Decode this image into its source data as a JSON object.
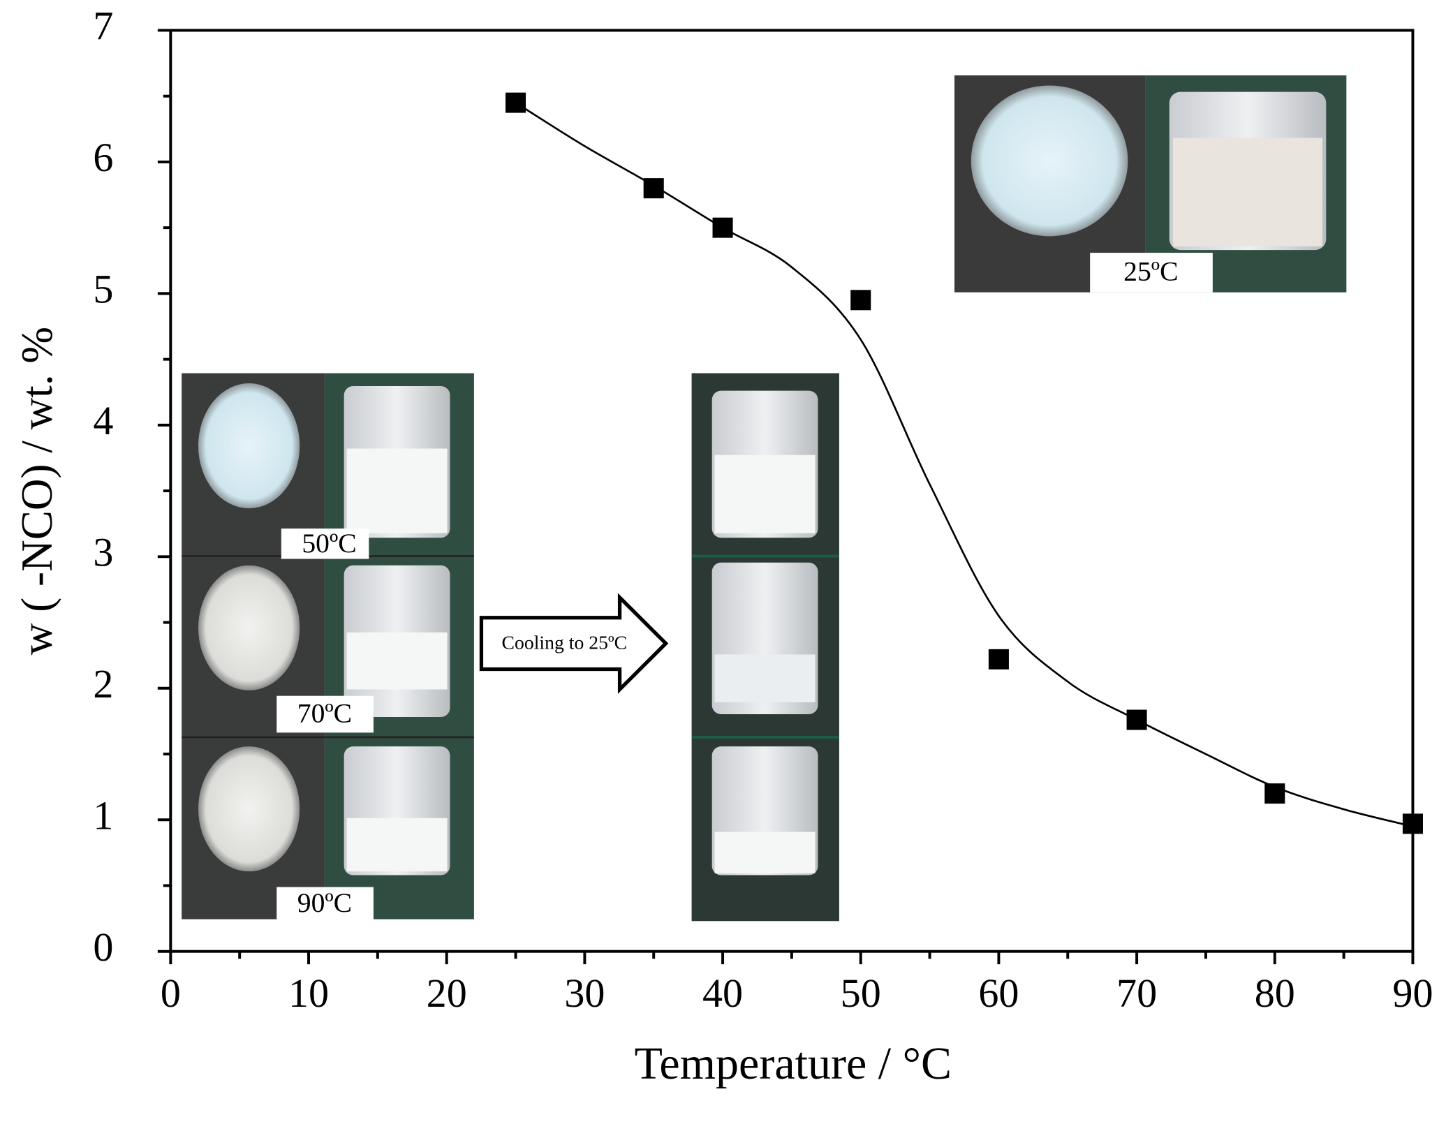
{
  "chart_data": {
    "type": "scatter",
    "x_label": "Temperature / °C",
    "y_label": "w ( -NCO) / wt. %",
    "xlim": [
      0,
      90
    ],
    "xticks": [
      0,
      10,
      20,
      30,
      40,
      50,
      60,
      70,
      80,
      90
    ],
    "xminorticks": [
      5,
      15,
      25,
      35,
      45,
      55,
      65,
      75,
      85
    ],
    "ylim": [
      0,
      7
    ],
    "yticks": [
      0,
      1,
      2,
      3,
      4,
      5,
      6,
      7
    ],
    "yminorticks": [
      0.5,
      1.5,
      2.5,
      3.5,
      4.5,
      5.5,
      6.5
    ],
    "series": [
      {
        "color": "#000000",
        "x": [
          25,
          35,
          40,
          50,
          60,
          70,
          80,
          90
        ],
        "values": [
          6.45,
          5.8,
          5.5,
          4.95,
          2.22,
          1.76,
          1.2,
          0.97
        ]
      }
    ],
    "fit": {
      "color": "#000000",
      "x": [
        25,
        30,
        35,
        40,
        45,
        50,
        55,
        60,
        65,
        70,
        75,
        80,
        85,
        90
      ],
      "y": [
        6.45,
        6.12,
        5.82,
        5.5,
        5.2,
        4.65,
        3.55,
        2.55,
        2.05,
        1.76,
        1.5,
        1.25,
        1.08,
        0.95
      ]
    },
    "annotations": [
      "50ºC",
      "70ºC",
      "90ºC",
      "Cooling to 25ºC",
      "25ºC"
    ]
  }
}
